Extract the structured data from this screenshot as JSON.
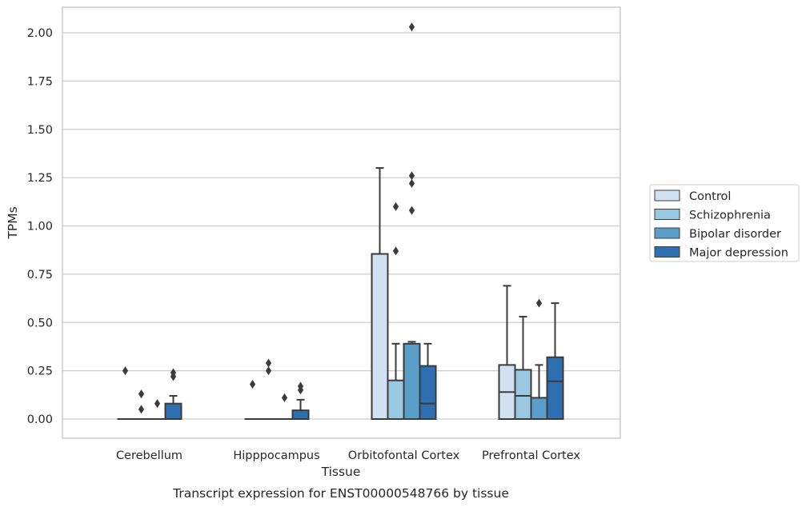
{
  "chart_data": {
    "type": "box",
    "title": "",
    "caption": "Transcript expression for ENST00000548766 by tissue",
    "xlabel": "Tissue",
    "ylabel": "TPMs",
    "ylim": [
      -0.1,
      2.13
    ],
    "yticks": [
      "0.00",
      "0.25",
      "0.50",
      "0.75",
      "1.00",
      "1.25",
      "1.50",
      "1.75",
      "2.00"
    ],
    "grid": true,
    "legend_position": "right",
    "categories": [
      "Cerebellum",
      "Hipppocampus",
      "Orbitofontal Cortex",
      "Prefrontal Cortex"
    ],
    "series": [
      {
        "name": "Control",
        "color": "#d0e1f2",
        "boxes": [
          {
            "q1": 0,
            "median": 0,
            "q3": 0,
            "whisker_low": 0,
            "whisker_high": 0,
            "outliers": [
              0.25
            ]
          },
          {
            "q1": 0,
            "median": 0,
            "q3": 0,
            "whisker_low": 0,
            "whisker_high": 0,
            "outliers": [
              0.18
            ]
          },
          {
            "q1": 0,
            "median": 0,
            "q3": 0.855,
            "whisker_low": 0,
            "whisker_high": 1.3,
            "outliers": []
          },
          {
            "q1": 0,
            "median": 0.14,
            "q3": 0.28,
            "whisker_low": 0,
            "whisker_high": 0.69,
            "outliers": []
          }
        ]
      },
      {
        "name": "Schizophrenia",
        "color": "#9ac8e0",
        "boxes": [
          {
            "q1": 0,
            "median": 0,
            "q3": 0,
            "whisker_low": 0,
            "whisker_high": 0,
            "outliers": [
              0.05,
              0.13
            ]
          },
          {
            "q1": 0,
            "median": 0,
            "q3": 0,
            "whisker_low": 0,
            "whisker_high": 0,
            "outliers": [
              0.25,
              0.29
            ]
          },
          {
            "q1": 0,
            "median": 0,
            "q3": 0.2,
            "whisker_low": 0,
            "whisker_high": 0.39,
            "outliers": [
              0.87,
              1.1
            ]
          },
          {
            "q1": 0,
            "median": 0.12,
            "q3": 0.255,
            "whisker_low": 0,
            "whisker_high": 0.53,
            "outliers": []
          }
        ]
      },
      {
        "name": "Bipolar disorder",
        "color": "#5a9ec9",
        "boxes": [
          {
            "q1": 0,
            "median": 0,
            "q3": 0,
            "whisker_low": 0,
            "whisker_high": 0,
            "outliers": [
              0.08
            ]
          },
          {
            "q1": 0,
            "median": 0,
            "q3": 0,
            "whisker_low": 0,
            "whisker_high": 0,
            "outliers": [
              0.11
            ]
          },
          {
            "q1": 0,
            "median": 0,
            "q3": 0.39,
            "whisker_low": 0,
            "whisker_high": 0.4,
            "outliers": [
              1.08,
              1.22,
              1.26,
              2.03
            ]
          },
          {
            "q1": 0,
            "median": 0,
            "q3": 0.11,
            "whisker_low": 0,
            "whisker_high": 0.28,
            "outliers": [
              0.6
            ]
          }
        ]
      },
      {
        "name": "Major depression",
        "color": "#2d6fb0",
        "boxes": [
          {
            "q1": 0,
            "median": 0,
            "q3": 0.08,
            "whisker_low": 0,
            "whisker_high": 0.12,
            "outliers": [
              0.22,
              0.24
            ]
          },
          {
            "q1": 0,
            "median": 0,
            "q3": 0.045,
            "whisker_low": 0,
            "whisker_high": 0.1,
            "outliers": [
              0.15,
              0.17
            ]
          },
          {
            "q1": 0,
            "median": 0.08,
            "q3": 0.275,
            "whisker_low": 0,
            "whisker_high": 0.39,
            "outliers": []
          },
          {
            "q1": 0,
            "median": 0.195,
            "q3": 0.32,
            "whisker_low": 0,
            "whisker_high": 0.6,
            "outliers": []
          }
        ]
      }
    ]
  }
}
